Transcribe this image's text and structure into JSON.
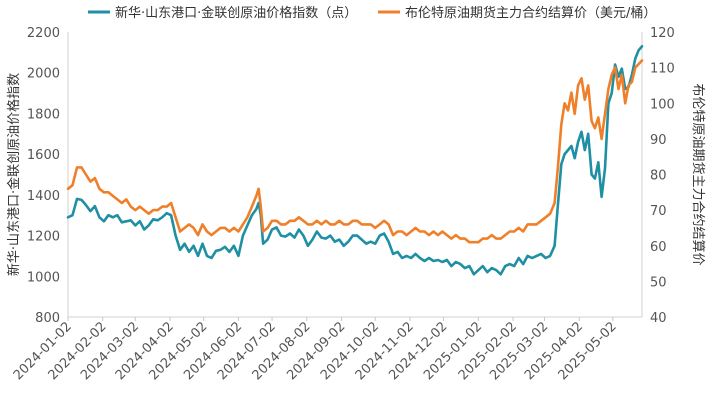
{
  "chart_data": {
    "type": "line",
    "title": "",
    "x_tick_labels": [
      "2024-01-02",
      "2024-02-02",
      "2024-03-02",
      "2024-04-02",
      "2024-05-02",
      "2024-06-02",
      "2024-07-02",
      "2024-08-02",
      "2024-09-02",
      "2024-10-02",
      "2024-11-02",
      "2024-12-02",
      "2025-01-02",
      "2025-02-02",
      "2025-03-02",
      "2025-04-02",
      "2025-05-02"
    ],
    "x_range": [
      "2024-01-02",
      "2025-05-28"
    ],
    "y_left": {
      "label": "新华·山东港口·金联创原油价格指数",
      "ylim": [
        800,
        2200
      ],
      "ticks": [
        800,
        1000,
        1200,
        1400,
        1600,
        1800,
        2000,
        2200
      ]
    },
    "y_right": {
      "label": "布伦特原油期货主力合约结算价",
      "ylim": [
        40,
        120
      ],
      "ticks": [
        40,
        50,
        60,
        70,
        80,
        90,
        100,
        110,
        120
      ]
    },
    "grid": false,
    "legend_position": "top",
    "series": [
      {
        "name": "新华·山东港口·金联创原油价格指数（点）",
        "axis": "left",
        "color": "#1f8fa3",
        "points": [
          [
            "2024-01-02",
            1290
          ],
          [
            "2024-01-06",
            1300
          ],
          [
            "2024-01-10",
            1380
          ],
          [
            "2024-01-14",
            1375
          ],
          [
            "2024-01-18",
            1350
          ],
          [
            "2024-01-22",
            1320
          ],
          [
            "2024-01-26",
            1345
          ],
          [
            "2024-01-30",
            1290
          ],
          [
            "2024-02-03",
            1270
          ],
          [
            "2024-02-07",
            1300
          ],
          [
            "2024-02-11",
            1290
          ],
          [
            "2024-02-15",
            1300
          ],
          [
            "2024-02-19",
            1265
          ],
          [
            "2024-02-23",
            1270
          ],
          [
            "2024-02-27",
            1275
          ],
          [
            "2024-03-02",
            1250
          ],
          [
            "2024-03-06",
            1270
          ],
          [
            "2024-03-10",
            1230
          ],
          [
            "2024-03-14",
            1250
          ],
          [
            "2024-03-18",
            1280
          ],
          [
            "2024-03-22",
            1275
          ],
          [
            "2024-03-26",
            1290
          ],
          [
            "2024-03-30",
            1310
          ],
          [
            "2024-04-03",
            1300
          ],
          [
            "2024-04-07",
            1200
          ],
          [
            "2024-04-11",
            1130
          ],
          [
            "2024-04-15",
            1160
          ],
          [
            "2024-04-19",
            1120
          ],
          [
            "2024-04-23",
            1150
          ],
          [
            "2024-04-27",
            1100
          ],
          [
            "2024-05-01",
            1160
          ],
          [
            "2024-05-05",
            1100
          ],
          [
            "2024-05-09",
            1090
          ],
          [
            "2024-05-13",
            1125
          ],
          [
            "2024-05-17",
            1130
          ],
          [
            "2024-05-21",
            1145
          ],
          [
            "2024-05-25",
            1120
          ],
          [
            "2024-05-29",
            1150
          ],
          [
            "2024-06-02",
            1100
          ],
          [
            "2024-06-06",
            1200
          ],
          [
            "2024-06-10",
            1250
          ],
          [
            "2024-06-14",
            1300
          ],
          [
            "2024-06-18",
            1330
          ],
          [
            "2024-06-20",
            1360
          ],
          [
            "2024-06-22",
            1300
          ],
          [
            "2024-06-24",
            1160
          ],
          [
            "2024-06-28",
            1180
          ],
          [
            "2024-07-02",
            1230
          ],
          [
            "2024-07-06",
            1240
          ],
          [
            "2024-07-10",
            1200
          ],
          [
            "2024-07-14",
            1195
          ],
          [
            "2024-07-18",
            1210
          ],
          [
            "2024-07-22",
            1190
          ],
          [
            "2024-07-26",
            1230
          ],
          [
            "2024-07-30",
            1200
          ],
          [
            "2024-08-03",
            1150
          ],
          [
            "2024-08-07",
            1180
          ],
          [
            "2024-08-11",
            1220
          ],
          [
            "2024-08-15",
            1190
          ],
          [
            "2024-08-19",
            1185
          ],
          [
            "2024-08-23",
            1200
          ],
          [
            "2024-08-27",
            1170
          ],
          [
            "2024-08-31",
            1180
          ],
          [
            "2024-09-04",
            1150
          ],
          [
            "2024-09-08",
            1170
          ],
          [
            "2024-09-12",
            1200
          ],
          [
            "2024-09-16",
            1200
          ],
          [
            "2024-09-20",
            1180
          ],
          [
            "2024-09-24",
            1160
          ],
          [
            "2024-09-28",
            1170
          ],
          [
            "2024-10-02",
            1160
          ],
          [
            "2024-10-06",
            1200
          ],
          [
            "2024-10-10",
            1210
          ],
          [
            "2024-10-14",
            1170
          ],
          [
            "2024-10-18",
            1110
          ],
          [
            "2024-10-22",
            1120
          ],
          [
            "2024-10-26",
            1090
          ],
          [
            "2024-10-30",
            1100
          ],
          [
            "2024-11-03",
            1090
          ],
          [
            "2024-11-07",
            1110
          ],
          [
            "2024-11-11",
            1090
          ],
          [
            "2024-11-15",
            1075
          ],
          [
            "2024-11-19",
            1090
          ],
          [
            "2024-11-23",
            1075
          ],
          [
            "2024-11-27",
            1080
          ],
          [
            "2024-12-01",
            1070
          ],
          [
            "2024-12-05",
            1080
          ],
          [
            "2024-12-09",
            1050
          ],
          [
            "2024-12-13",
            1070
          ],
          [
            "2024-12-17",
            1060
          ],
          [
            "2024-12-21",
            1040
          ],
          [
            "2024-12-25",
            1050
          ],
          [
            "2024-12-29",
            1010
          ],
          [
            "2025-01-02",
            1030
          ],
          [
            "2025-01-06",
            1050
          ],
          [
            "2025-01-10",
            1020
          ],
          [
            "2025-01-14",
            1040
          ],
          [
            "2025-01-18",
            1030
          ],
          [
            "2025-01-22",
            1010
          ],
          [
            "2025-01-26",
            1050
          ],
          [
            "2025-01-30",
            1060
          ],
          [
            "2025-02-03",
            1050
          ],
          [
            "2025-02-07",
            1090
          ],
          [
            "2025-02-11",
            1060
          ],
          [
            "2025-02-15",
            1100
          ],
          [
            "2025-02-19",
            1090
          ],
          [
            "2025-02-23",
            1100
          ],
          [
            "2025-02-27",
            1110
          ],
          [
            "2025-03-03",
            1090
          ],
          [
            "2025-03-07",
            1100
          ],
          [
            "2025-03-11",
            1150
          ],
          [
            "2025-03-14",
            1350
          ],
          [
            "2025-03-17",
            1550
          ],
          [
            "2025-03-20",
            1600
          ],
          [
            "2025-03-23",
            1620
          ],
          [
            "2025-03-26",
            1640
          ],
          [
            "2025-03-29",
            1580
          ],
          [
            "2025-04-01",
            1660
          ],
          [
            "2025-04-04",
            1710
          ],
          [
            "2025-04-07",
            1620
          ],
          [
            "2025-04-10",
            1700
          ],
          [
            "2025-04-13",
            1500
          ],
          [
            "2025-04-16",
            1480
          ],
          [
            "2025-04-19",
            1560
          ],
          [
            "2025-04-22",
            1390
          ],
          [
            "2025-04-25",
            1530
          ],
          [
            "2025-04-28",
            1850
          ],
          [
            "2025-05-01",
            1900
          ],
          [
            "2025-05-04",
            2040
          ],
          [
            "2025-05-07",
            1980
          ],
          [
            "2025-05-10",
            2020
          ],
          [
            "2025-05-13",
            1920
          ],
          [
            "2025-05-16",
            1930
          ],
          [
            "2025-05-19",
            1990
          ],
          [
            "2025-05-22",
            2070
          ],
          [
            "2025-05-25",
            2110
          ],
          [
            "2025-05-28",
            2130
          ]
        ]
      },
      {
        "name": "布伦特原油期货主力合约结算价（美元/桶）",
        "axis": "right",
        "color": "#f07f2a",
        "points": [
          [
            "2024-01-02",
            76
          ],
          [
            "2024-01-06",
            77
          ],
          [
            "2024-01-10",
            82
          ],
          [
            "2024-01-14",
            82
          ],
          [
            "2024-01-18",
            80
          ],
          [
            "2024-01-22",
            78
          ],
          [
            "2024-01-26",
            79
          ],
          [
            "2024-01-30",
            76
          ],
          [
            "2024-02-03",
            75
          ],
          [
            "2024-02-07",
            75
          ],
          [
            "2024-02-11",
            74
          ],
          [
            "2024-02-15",
            73
          ],
          [
            "2024-02-19",
            72
          ],
          [
            "2024-02-23",
            73
          ],
          [
            "2024-02-27",
            71
          ],
          [
            "2024-03-02",
            70
          ],
          [
            "2024-03-06",
            71
          ],
          [
            "2024-03-10",
            70
          ],
          [
            "2024-03-14",
            69
          ],
          [
            "2024-03-18",
            70
          ],
          [
            "2024-03-22",
            70
          ],
          [
            "2024-03-26",
            71
          ],
          [
            "2024-03-30",
            71
          ],
          [
            "2024-04-03",
            72
          ],
          [
            "2024-04-07",
            68
          ],
          [
            "2024-04-11",
            64
          ],
          [
            "2024-04-15",
            65
          ],
          [
            "2024-04-19",
            66
          ],
          [
            "2024-04-23",
            65
          ],
          [
            "2024-04-27",
            63
          ],
          [
            "2024-05-01",
            66
          ],
          [
            "2024-05-05",
            64
          ],
          [
            "2024-05-09",
            63
          ],
          [
            "2024-05-13",
            64
          ],
          [
            "2024-05-17",
            65
          ],
          [
            "2024-05-21",
            65
          ],
          [
            "2024-05-25",
            64
          ],
          [
            "2024-05-29",
            65
          ],
          [
            "2024-06-02",
            64
          ],
          [
            "2024-06-06",
            66
          ],
          [
            "2024-06-10",
            68
          ],
          [
            "2024-06-14",
            71
          ],
          [
            "2024-06-18",
            74
          ],
          [
            "2024-06-20",
            76
          ],
          [
            "2024-06-22",
            71
          ],
          [
            "2024-06-24",
            64
          ],
          [
            "2024-06-28",
            65
          ],
          [
            "2024-07-02",
            67
          ],
          [
            "2024-07-06",
            67
          ],
          [
            "2024-07-10",
            66
          ],
          [
            "2024-07-14",
            66
          ],
          [
            "2024-07-18",
            67
          ],
          [
            "2024-07-22",
            67
          ],
          [
            "2024-07-26",
            68
          ],
          [
            "2024-07-30",
            67
          ],
          [
            "2024-08-03",
            66
          ],
          [
            "2024-08-07",
            66
          ],
          [
            "2024-08-11",
            67
          ],
          [
            "2024-08-15",
            66
          ],
          [
            "2024-08-19",
            67
          ],
          [
            "2024-08-23",
            66
          ],
          [
            "2024-08-27",
            66
          ],
          [
            "2024-08-31",
            67
          ],
          [
            "2024-09-04",
            66
          ],
          [
            "2024-09-08",
            66
          ],
          [
            "2024-09-12",
            67
          ],
          [
            "2024-09-16",
            67
          ],
          [
            "2024-09-20",
            66
          ],
          [
            "2024-09-24",
            66
          ],
          [
            "2024-09-28",
            66
          ],
          [
            "2024-10-02",
            65
          ],
          [
            "2024-10-06",
            66
          ],
          [
            "2024-10-10",
            67
          ],
          [
            "2024-10-14",
            66
          ],
          [
            "2024-10-18",
            63
          ],
          [
            "2024-10-22",
            64
          ],
          [
            "2024-10-26",
            64
          ],
          [
            "2024-10-30",
            63
          ],
          [
            "2024-11-03",
            64
          ],
          [
            "2024-11-07",
            65
          ],
          [
            "2024-11-11",
            64
          ],
          [
            "2024-11-15",
            64
          ],
          [
            "2024-11-19",
            63
          ],
          [
            "2024-11-23",
            64
          ],
          [
            "2024-11-27",
            63
          ],
          [
            "2024-12-01",
            64
          ],
          [
            "2024-12-05",
            63
          ],
          [
            "2024-12-09",
            62
          ],
          [
            "2024-12-13",
            63
          ],
          [
            "2024-12-17",
            62
          ],
          [
            "2024-12-21",
            62
          ],
          [
            "2024-12-25",
            61
          ],
          [
            "2024-12-29",
            61
          ],
          [
            "2025-01-02",
            61
          ],
          [
            "2025-01-06",
            62
          ],
          [
            "2025-01-10",
            62
          ],
          [
            "2025-01-14",
            63
          ],
          [
            "2025-01-18",
            62
          ],
          [
            "2025-01-22",
            62
          ],
          [
            "2025-01-26",
            63
          ],
          [
            "2025-01-30",
            64
          ],
          [
            "2025-02-03",
            64
          ],
          [
            "2025-02-07",
            65
          ],
          [
            "2025-02-11",
            64
          ],
          [
            "2025-02-15",
            66
          ],
          [
            "2025-02-19",
            66
          ],
          [
            "2025-02-23",
            66
          ],
          [
            "2025-02-27",
            67
          ],
          [
            "2025-03-03",
            68
          ],
          [
            "2025-03-07",
            69
          ],
          [
            "2025-03-11",
            72
          ],
          [
            "2025-03-14",
            82
          ],
          [
            "2025-03-17",
            94
          ],
          [
            "2025-03-20",
            100
          ],
          [
            "2025-03-23",
            98
          ],
          [
            "2025-03-26",
            103
          ],
          [
            "2025-03-29",
            97
          ],
          [
            "2025-04-01",
            105
          ],
          [
            "2025-04-04",
            107
          ],
          [
            "2025-04-07",
            101
          ],
          [
            "2025-04-10",
            105
          ],
          [
            "2025-04-13",
            95
          ],
          [
            "2025-04-16",
            93
          ],
          [
            "2025-04-19",
            96
          ],
          [
            "2025-04-22",
            90
          ],
          [
            "2025-04-25",
            97
          ],
          [
            "2025-04-28",
            104
          ],
          [
            "2025-05-01",
            108
          ],
          [
            "2025-05-04",
            110
          ],
          [
            "2025-05-07",
            104
          ],
          [
            "2025-05-10",
            108
          ],
          [
            "2025-05-13",
            100
          ],
          [
            "2025-05-16",
            105
          ],
          [
            "2025-05-19",
            106
          ],
          [
            "2025-05-22",
            110
          ],
          [
            "2025-05-25",
            111
          ],
          [
            "2025-05-28",
            112
          ]
        ]
      }
    ]
  }
}
